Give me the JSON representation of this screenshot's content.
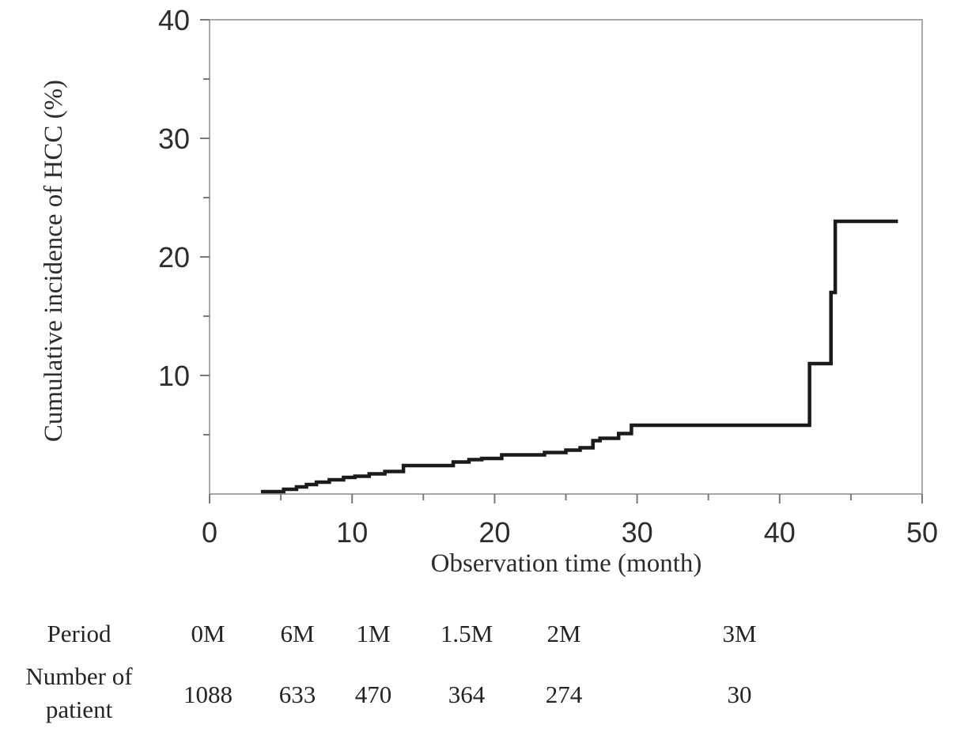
{
  "chart_data": {
    "type": "line",
    "subtype": "step-after-survival-curve",
    "title": "",
    "xlabel": "Observation time (month)",
    "ylabel": "Cumulative incidence of HCC (%)",
    "xlim": [
      0,
      50
    ],
    "ylim": [
      0,
      40
    ],
    "x_major_ticks": [
      0,
      10,
      20,
      30,
      40,
      50
    ],
    "x_minor_ticks": [
      5,
      15,
      25,
      35,
      45
    ],
    "x_tick_labels": [
      "0",
      "10",
      "20",
      "30",
      "40",
      "50"
    ],
    "y_major_ticks": [
      10,
      20,
      30,
      40
    ],
    "y_minor_ticks": [
      5,
      15,
      25,
      35
    ],
    "y_tick_labels": [
      "10",
      "20",
      "30",
      "40"
    ],
    "grid": false,
    "legend": "none",
    "series": [
      {
        "name": "Cumulative incidence of HCC",
        "color": "#1b1b1b",
        "points": [
          [
            3.6,
            0.2
          ],
          [
            5.2,
            0.4
          ],
          [
            6.1,
            0.6
          ],
          [
            6.8,
            0.8
          ],
          [
            7.5,
            1.0
          ],
          [
            8.4,
            1.2
          ],
          [
            9.4,
            1.4
          ],
          [
            10.2,
            1.5
          ],
          [
            11.2,
            1.7
          ],
          [
            12.3,
            1.9
          ],
          [
            13.6,
            2.4
          ],
          [
            17.1,
            2.7
          ],
          [
            18.2,
            2.9
          ],
          [
            19.1,
            3.0
          ],
          [
            20.5,
            3.3
          ],
          [
            23.5,
            3.5
          ],
          [
            25.0,
            3.7
          ],
          [
            26.0,
            3.9
          ],
          [
            26.9,
            4.5
          ],
          [
            27.4,
            4.7
          ],
          [
            28.7,
            5.1
          ],
          [
            29.6,
            5.8
          ],
          [
            42.1,
            11.0
          ],
          [
            43.6,
            17.0
          ],
          [
            43.9,
            23.0
          ],
          [
            48.3,
            23.0
          ]
        ]
      }
    ]
  },
  "at_risk_table": {
    "row1_label": "Period",
    "row1_values": [
      "0M",
      "6M",
      "1M",
      "1.5M",
      "2M",
      "3M"
    ],
    "row2_label_line1": "Number of",
    "row2_label_line2": "patient",
    "row2_values": [
      "1088",
      "633",
      "470",
      "364",
      "274",
      "30"
    ]
  },
  "colors": {
    "curve": "#1b1b1b",
    "plot_border": "#a7a7a7",
    "tick": "#7a7a7a",
    "text": "#2d2d2d"
  }
}
